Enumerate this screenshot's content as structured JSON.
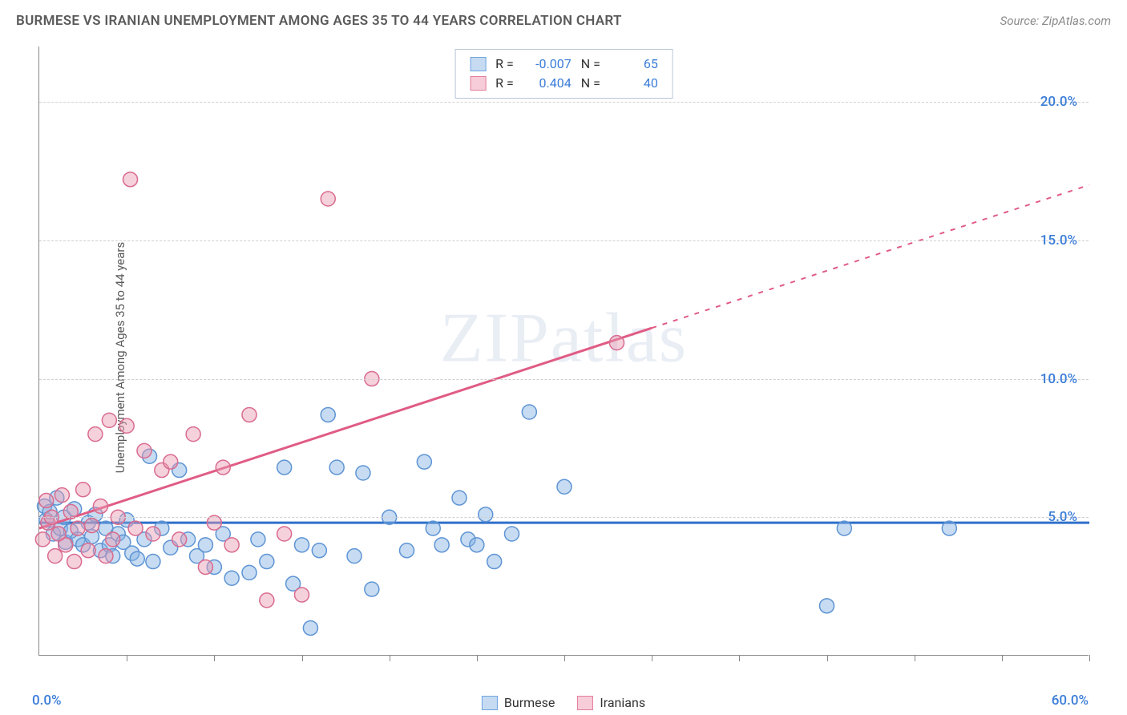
{
  "header": {
    "title": "BURMESE VS IRANIAN UNEMPLOYMENT AMONG AGES 35 TO 44 YEARS CORRELATION CHART",
    "source_prefix": "Source: ",
    "source_name": "ZipAtlas.com"
  },
  "axes": {
    "y_label": "Unemployment Among Ages 35 to 44 years",
    "x_origin": "0.0%",
    "x_end": "60.0%",
    "y_ticks": [
      {
        "value": 5,
        "label": "5.0%"
      },
      {
        "value": 10,
        "label": "10.0%"
      },
      {
        "value": 15,
        "label": "15.0%"
      },
      {
        "value": 20,
        "label": "20.0%"
      }
    ],
    "x_tick_positions": [
      5,
      10,
      15,
      20,
      25,
      30,
      35,
      40,
      45,
      50,
      55,
      60
    ],
    "xlim": [
      0,
      60
    ],
    "ylim": [
      0,
      22
    ]
  },
  "correlation_box": {
    "rows": [
      {
        "swatch_fill": "#c6dbf2",
        "swatch_border": "#6fa3e0",
        "r_label": "R =",
        "r_value": "-0.007",
        "n_label": "N =",
        "n_value": "65"
      },
      {
        "swatch_fill": "#f6cdd8",
        "swatch_border": "#e47c9a",
        "r_label": "R =",
        "r_value": "0.404",
        "n_label": "N =",
        "n_value": "40"
      }
    ]
  },
  "legend": {
    "items": [
      {
        "label": "Burmese",
        "fill": "#c6dbf2",
        "border": "#6fa3e0"
      },
      {
        "label": "Iranians",
        "fill": "#f6cdd8",
        "border": "#e47c9a"
      }
    ]
  },
  "watermark": {
    "part1": "ZIP",
    "part2": "atlas"
  },
  "styling": {
    "background": "#ffffff",
    "grid_color": "#d0d0d0",
    "axis_color": "#888888",
    "tick_label_color": "#3b7dd8",
    "title_color": "#5a5a5a",
    "marker_radius": 9,
    "marker_stroke_width": 1.5,
    "trend_line_width": 3
  },
  "series": [
    {
      "name": "Burmese",
      "fill": "rgba(131,177,227,0.45)",
      "stroke": "#5e94d4",
      "trend": {
        "x1": 0,
        "y1": 4.8,
        "x2": 60,
        "y2": 4.8,
        "color": "#2f6fc9",
        "dash_after_x": null
      },
      "points": [
        [
          0.3,
          5.4
        ],
        [
          0.4,
          4.9
        ],
        [
          0.6,
          5.2
        ],
        [
          0.8,
          4.4
        ],
        [
          1.0,
          5.7
        ],
        [
          1.2,
          4.6
        ],
        [
          1.4,
          5.0
        ],
        [
          1.5,
          4.1
        ],
        [
          1.8,
          4.5
        ],
        [
          2.0,
          5.3
        ],
        [
          2.2,
          4.2
        ],
        [
          2.5,
          4.0
        ],
        [
          2.8,
          4.8
        ],
        [
          3.0,
          4.3
        ],
        [
          3.2,
          5.1
        ],
        [
          3.5,
          3.8
        ],
        [
          3.8,
          4.6
        ],
        [
          4.0,
          4.0
        ],
        [
          4.2,
          3.6
        ],
        [
          4.5,
          4.4
        ],
        [
          4.8,
          4.1
        ],
        [
          5.0,
          4.9
        ],
        [
          5.3,
          3.7
        ],
        [
          5.6,
          3.5
        ],
        [
          6.0,
          4.2
        ],
        [
          6.3,
          7.2
        ],
        [
          6.5,
          3.4
        ],
        [
          7.0,
          4.6
        ],
        [
          7.5,
          3.9
        ],
        [
          8.0,
          6.7
        ],
        [
          8.5,
          4.2
        ],
        [
          9.0,
          3.6
        ],
        [
          9.5,
          4.0
        ],
        [
          10.0,
          3.2
        ],
        [
          10.5,
          4.4
        ],
        [
          11.0,
          2.8
        ],
        [
          12.0,
          3.0
        ],
        [
          12.5,
          4.2
        ],
        [
          13.0,
          3.4
        ],
        [
          14.0,
          6.8
        ],
        [
          14.5,
          2.6
        ],
        [
          15.0,
          4.0
        ],
        [
          15.5,
          1.0
        ],
        [
          16.0,
          3.8
        ],
        [
          16.5,
          8.7
        ],
        [
          17.0,
          6.8
        ],
        [
          18.0,
          3.6
        ],
        [
          18.5,
          6.6
        ],
        [
          19.0,
          2.4
        ],
        [
          20.0,
          5.0
        ],
        [
          21.0,
          3.8
        ],
        [
          22.0,
          7.0
        ],
        [
          22.5,
          4.6
        ],
        [
          23.0,
          4.0
        ],
        [
          24.0,
          5.7
        ],
        [
          24.5,
          4.2
        ],
        [
          25.0,
          4.0
        ],
        [
          25.5,
          5.1
        ],
        [
          26.0,
          3.4
        ],
        [
          27.0,
          4.4
        ],
        [
          28.0,
          8.8
        ],
        [
          30.0,
          6.1
        ],
        [
          45.0,
          1.8
        ],
        [
          46.0,
          4.6
        ],
        [
          52.0,
          4.6
        ]
      ]
    },
    {
      "name": "Iranians",
      "fill": "rgba(232,154,178,0.45)",
      "stroke": "#d96b8f",
      "trend": {
        "x1": 0,
        "y1": 4.6,
        "x2": 60,
        "y2": 17.0,
        "color": "#e05c85",
        "dash_after_x": 35
      },
      "points": [
        [
          0.2,
          4.2
        ],
        [
          0.4,
          5.6
        ],
        [
          0.5,
          4.8
        ],
        [
          0.7,
          5.0
        ],
        [
          0.9,
          3.6
        ],
        [
          1.1,
          4.4
        ],
        [
          1.3,
          5.8
        ],
        [
          1.5,
          4.0
        ],
        [
          1.8,
          5.2
        ],
        [
          2.0,
          3.4
        ],
        [
          2.2,
          4.6
        ],
        [
          2.5,
          6.0
        ],
        [
          2.8,
          3.8
        ],
        [
          3.0,
          4.7
        ],
        [
          3.2,
          8.0
        ],
        [
          3.5,
          5.4
        ],
        [
          3.8,
          3.6
        ],
        [
          4.0,
          8.5
        ],
        [
          4.2,
          4.2
        ],
        [
          4.5,
          5.0
        ],
        [
          5.0,
          8.3
        ],
        [
          5.2,
          17.2
        ],
        [
          5.5,
          4.6
        ],
        [
          6.0,
          7.4
        ],
        [
          6.5,
          4.4
        ],
        [
          7.0,
          6.7
        ],
        [
          7.5,
          7.0
        ],
        [
          8.0,
          4.2
        ],
        [
          8.8,
          8.0
        ],
        [
          9.5,
          3.2
        ],
        [
          10.0,
          4.8
        ],
        [
          10.5,
          6.8
        ],
        [
          11.0,
          4.0
        ],
        [
          12.0,
          8.7
        ],
        [
          13.0,
          2.0
        ],
        [
          14.0,
          4.4
        ],
        [
          15.0,
          2.2
        ],
        [
          16.5,
          16.5
        ],
        [
          19.0,
          10.0
        ],
        [
          33.0,
          11.3
        ]
      ]
    }
  ]
}
